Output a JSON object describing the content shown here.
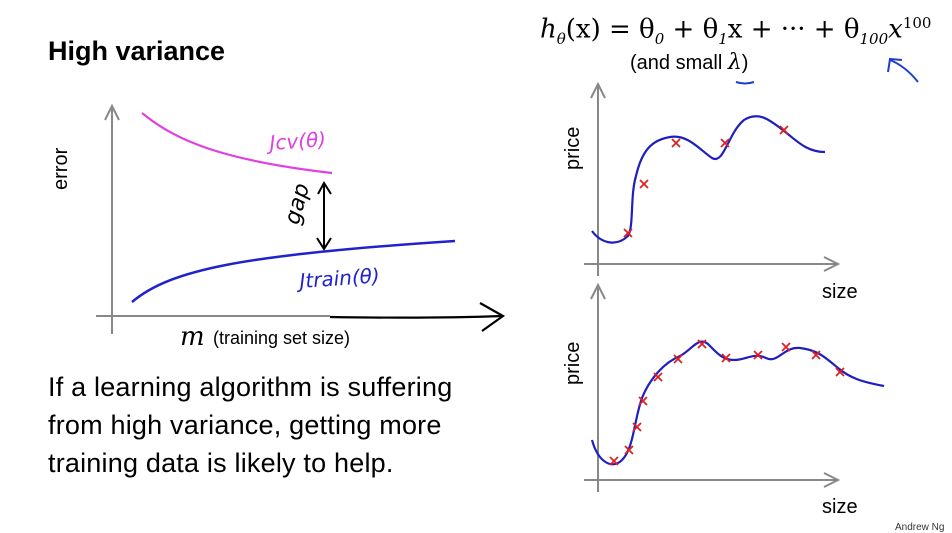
{
  "slide": {
    "title": "High variance",
    "body": "If a learning algorithm is suffering from high variance, getting more training data is likely to help.",
    "author": "Andrew Ng"
  },
  "formula": {
    "lhs": "h",
    "lhs_sub": "θ",
    "arg": "(x) = θ",
    "t0": "0",
    "mid": " + θ",
    "t1": "1",
    "rest": "x + ··· + θ",
    "t100": "100",
    "x": "x",
    "power": "100",
    "note_prefix": "(and small ",
    "note_lambda": "λ",
    "note_suffix": ")"
  },
  "learning_curve": {
    "ylabel": "error",
    "xvar": "m",
    "xlabel": "(training set size)",
    "jcv_label": "Jcv(θ)",
    "jtrain_label": "Jtrain(θ)",
    "gap_label": "gap",
    "colors": {
      "jcv": "#e040e0",
      "jtrain": "#2222cc",
      "axis": "#888888",
      "ink": "#000000"
    }
  },
  "plots": [
    {
      "ylabel": "price",
      "xlabel": "size"
    },
    {
      "ylabel": "price",
      "xlabel": "size"
    }
  ],
  "colors": {
    "curve": "#1f1fbf",
    "points": "#e02020",
    "annotation": "#1f3fcc"
  }
}
